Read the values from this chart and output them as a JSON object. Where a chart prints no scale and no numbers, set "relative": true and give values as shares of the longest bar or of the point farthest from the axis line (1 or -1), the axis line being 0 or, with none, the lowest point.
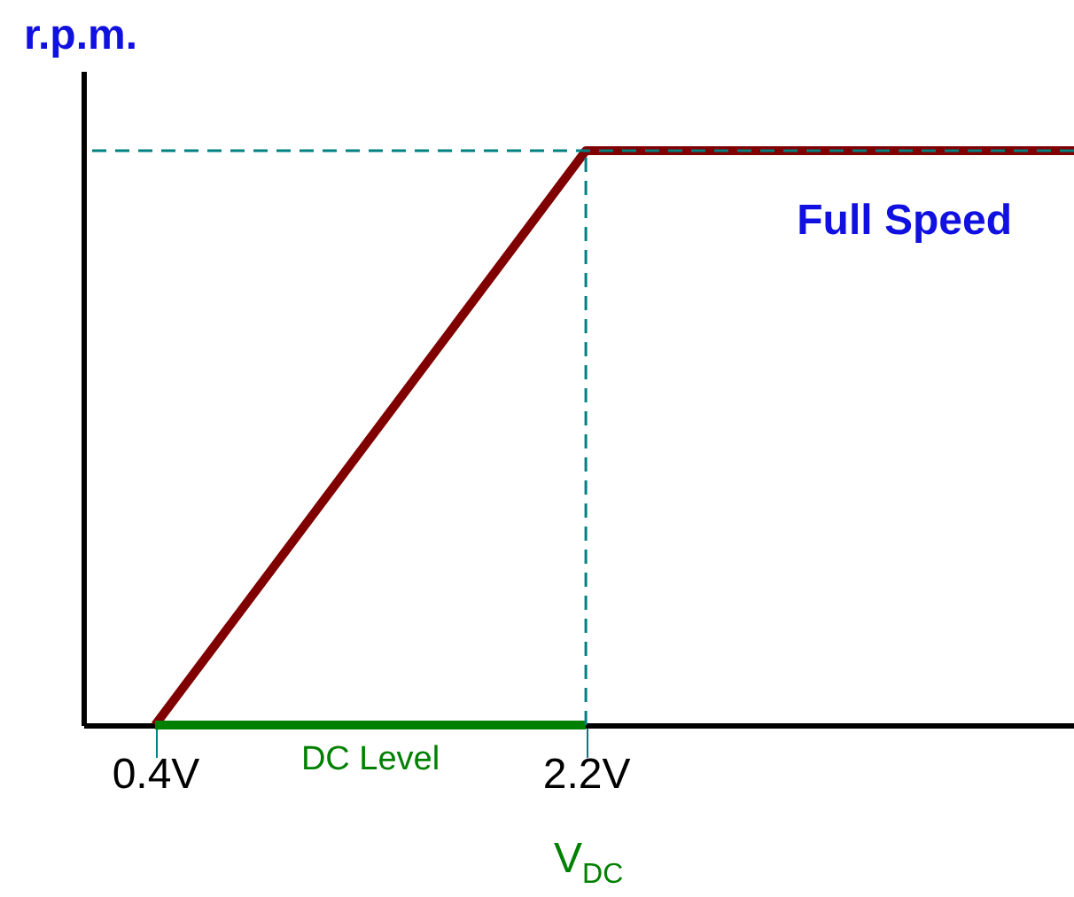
{
  "chart_data": {
    "type": "line",
    "relative": true,
    "ylabel": "r.p.m.",
    "xlabel": "V$_{DC}$",
    "x": [
      0.4,
      2.2,
      4.24
    ],
    "series": [
      {
        "color": "#800000",
        "values": [
          0,
          1,
          1
        ]
      },
      {
        "name": "DC Level",
        "color": "#008000",
        "x": [
          0.4,
          2.2
        ],
        "values": [
          0,
          0
        ]
      }
    ],
    "xlim": [
      0.1,
      4.24
    ],
    "xticks": [
      {
        "value": 0.4,
        "label": "0.4V"
      },
      {
        "value": 2.2,
        "label": "2.2V"
      }
    ],
    "ref_lines": [
      {
        "axis": "x",
        "value": 2.2,
        "color": "#008080",
        "line_style": "dashed"
      },
      {
        "axis": "y",
        "value": 1,
        "color": "#008080",
        "line_style": "dashed"
      }
    ],
    "annotations": [
      "Full Speed"
    ],
    "grid": false,
    "marker": "none",
    "line_style": "solid"
  }
}
